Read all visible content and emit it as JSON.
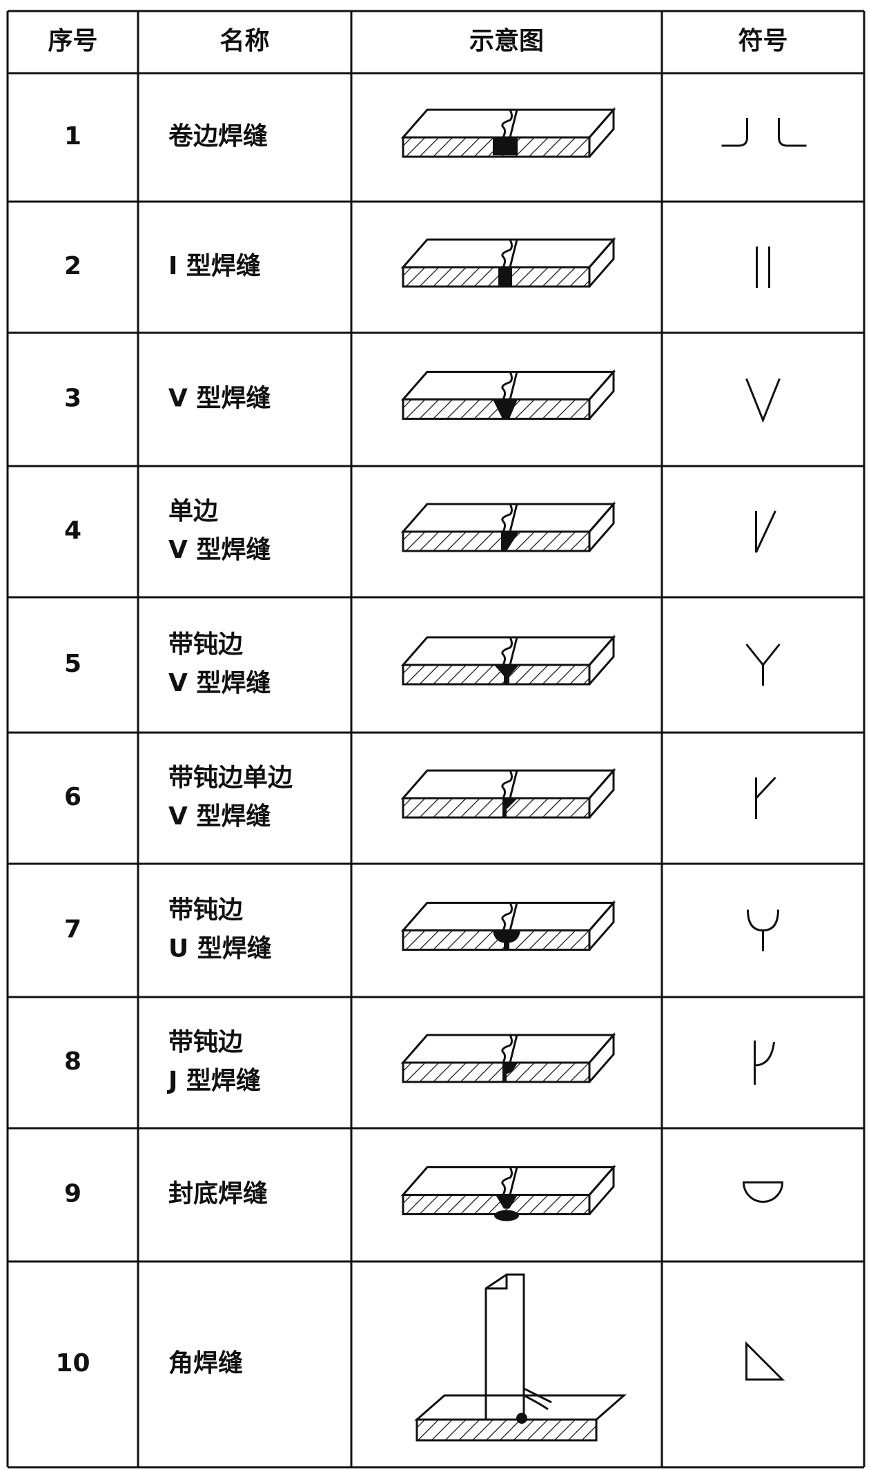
{
  "header": [
    "序号",
    "名称",
    "示意图",
    "符号"
  ],
  "rows": [
    {
      "number": "1",
      "name": [
        "卷边焊缝"
      ]
    },
    {
      "number": "2",
      "name": [
        "I 型焊缝"
      ]
    },
    {
      "number": "3",
      "name": [
        "V 型焊缝"
      ]
    },
    {
      "number": "4",
      "name": [
        "单边",
        "V 型焊缝"
      ]
    },
    {
      "number": "5",
      "name": [
        "带钝边",
        "V 型焊缝"
      ]
    },
    {
      "number": "6",
      "name": [
        "带钝边单边",
        "V 型焊缝"
      ]
    },
    {
      "number": "7",
      "name": [
        "带钝边",
        "U 型焊缝"
      ]
    },
    {
      "number": "8",
      "name": [
        "带钝边",
        "J 型焊缝"
      ]
    },
    {
      "number": "9",
      "name": [
        "封底焊缝"
      ]
    },
    {
      "number": "10",
      "name": [
        "角焊缝"
      ]
    }
  ]
}
